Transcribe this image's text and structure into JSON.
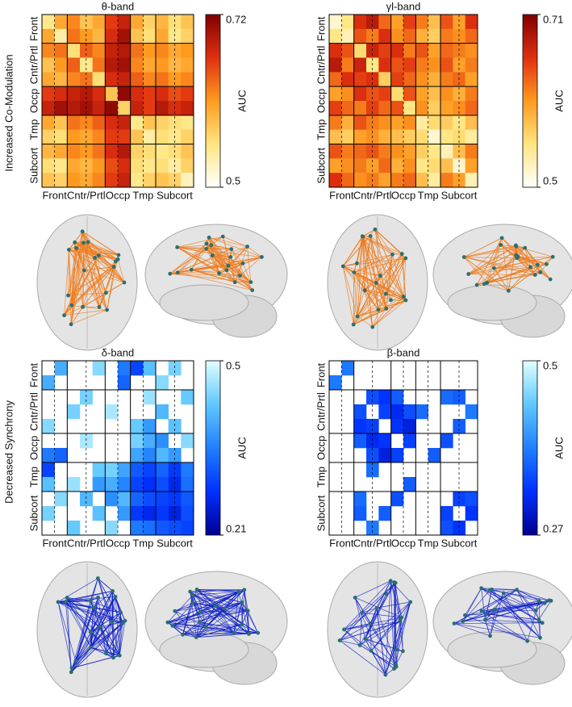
{
  "panel_rows": [
    "Increased Co-Modulation",
    "Decreased Synchrony"
  ],
  "chart_data": [
    {
      "type": "heatmap",
      "title": "θ-band",
      "colorbar_label": "AUC",
      "clim": [
        0.5,
        0.72
      ],
      "cticks": [
        0.5,
        0.72
      ],
      "colors": [
        "#ffffff",
        "#ffe680",
        "#ff9a20",
        "#e03010",
        "#800000"
      ],
      "groups": [
        {
          "name": "Front",
          "color": "#2b4a8c",
          "size": 2
        },
        {
          "name": "Cntr/Prtl",
          "color": "#d2691e",
          "size": 3
        },
        {
          "name": "Occp",
          "color": "#3a9a3a",
          "size": 2
        },
        {
          "name": "Tmp",
          "color": "#a040c0",
          "size": 2
        },
        {
          "name": "Subcort",
          "color": "#30b0b0",
          "size": 3
        }
      ],
      "matrix": [
        [
          0.55,
          0.6,
          0.62,
          0.58,
          0.6,
          0.66,
          0.68,
          0.6,
          0.57,
          0.59,
          0.56,
          0.58
        ],
        [
          0.6,
          0.54,
          0.63,
          0.61,
          0.59,
          0.67,
          0.7,
          0.58,
          0.56,
          0.6,
          0.55,
          0.57
        ],
        [
          0.62,
          0.63,
          0.56,
          0.64,
          0.62,
          0.68,
          0.69,
          0.63,
          0.61,
          0.62,
          0.6,
          0.61
        ],
        [
          0.58,
          0.61,
          0.64,
          0.55,
          0.63,
          0.69,
          0.7,
          0.62,
          0.6,
          0.61,
          0.59,
          0.6
        ],
        [
          0.6,
          0.59,
          0.62,
          0.63,
          0.56,
          0.67,
          0.68,
          0.64,
          0.62,
          0.63,
          0.61,
          0.62
        ],
        [
          0.66,
          0.67,
          0.68,
          0.69,
          0.67,
          0.58,
          0.71,
          0.67,
          0.66,
          0.67,
          0.65,
          0.66
        ],
        [
          0.68,
          0.7,
          0.69,
          0.7,
          0.68,
          0.71,
          0.57,
          0.68,
          0.66,
          0.69,
          0.67,
          0.68
        ],
        [
          0.6,
          0.58,
          0.63,
          0.62,
          0.64,
          0.67,
          0.68,
          0.55,
          0.58,
          0.57,
          0.56,
          0.55
        ],
        [
          0.57,
          0.56,
          0.61,
          0.6,
          0.62,
          0.66,
          0.66,
          0.58,
          0.54,
          0.56,
          0.55,
          0.57
        ],
        [
          0.59,
          0.6,
          0.62,
          0.61,
          0.63,
          0.67,
          0.69,
          0.57,
          0.56,
          0.55,
          0.56,
          0.58
        ],
        [
          0.56,
          0.55,
          0.6,
          0.59,
          0.61,
          0.65,
          0.67,
          0.56,
          0.55,
          0.56,
          0.54,
          0.57
        ],
        [
          0.58,
          0.57,
          0.61,
          0.6,
          0.62,
          0.66,
          0.68,
          0.55,
          0.57,
          0.58,
          0.57,
          0.53
        ]
      ]
    },
    {
      "type": "heatmap",
      "title": "γl-band",
      "colorbar_label": "AUC",
      "clim": [
        0.5,
        0.71
      ],
      "cticks": [
        0.5,
        0.71
      ],
      "colors": [
        "#ffffff",
        "#ffe680",
        "#ff9a20",
        "#e03010",
        "#800000"
      ],
      "groups": [
        {
          "name": "Front",
          "color": "#2b4a8c",
          "size": 2
        },
        {
          "name": "Cntr/Prtl",
          "color": "#d2691e",
          "size": 3
        },
        {
          "name": "Occp",
          "color": "#3a9a3a",
          "size": 2
        },
        {
          "name": "Tmp",
          "color": "#a040c0",
          "size": 2
        },
        {
          "name": "Subcort",
          "color": "#30b0b0",
          "size": 3
        }
      ],
      "matrix": [
        [
          0.52,
          0.55,
          0.66,
          0.68,
          0.63,
          0.6,
          0.65,
          0.62,
          0.58,
          0.64,
          0.6,
          0.66
        ],
        [
          0.55,
          0.53,
          0.64,
          0.62,
          0.66,
          0.61,
          0.63,
          0.59,
          0.57,
          0.62,
          0.61,
          0.63
        ],
        [
          0.66,
          0.64,
          0.56,
          0.67,
          0.65,
          0.66,
          0.62,
          0.64,
          0.6,
          0.63,
          0.62,
          0.61
        ],
        [
          0.68,
          0.62,
          0.67,
          0.55,
          0.66,
          0.64,
          0.65,
          0.62,
          0.61,
          0.64,
          0.6,
          0.62
        ],
        [
          0.63,
          0.66,
          0.65,
          0.66,
          0.57,
          0.65,
          0.63,
          0.61,
          0.59,
          0.62,
          0.63,
          0.6
        ],
        [
          0.6,
          0.61,
          0.66,
          0.64,
          0.65,
          0.56,
          0.64,
          0.6,
          0.58,
          0.61,
          0.59,
          0.62
        ],
        [
          0.65,
          0.63,
          0.62,
          0.65,
          0.63,
          0.64,
          0.55,
          0.61,
          0.57,
          0.6,
          0.61,
          0.63
        ],
        [
          0.62,
          0.59,
          0.64,
          0.62,
          0.61,
          0.6,
          0.61,
          0.54,
          0.56,
          0.57,
          0.55,
          0.58
        ],
        [
          0.58,
          0.57,
          0.6,
          0.61,
          0.59,
          0.58,
          0.57,
          0.56,
          0.52,
          0.55,
          0.56,
          0.54
        ],
        [
          0.64,
          0.62,
          0.63,
          0.64,
          0.62,
          0.61,
          0.6,
          0.57,
          0.55,
          0.53,
          0.58,
          0.62
        ],
        [
          0.6,
          0.61,
          0.62,
          0.6,
          0.63,
          0.59,
          0.61,
          0.55,
          0.56,
          0.58,
          0.52,
          0.6
        ],
        [
          0.66,
          0.63,
          0.61,
          0.62,
          0.6,
          0.62,
          0.63,
          0.58,
          0.54,
          0.62,
          0.6,
          0.53
        ]
      ]
    },
    {
      "type": "heatmap",
      "title": "δ-band",
      "colorbar_label": "AUC",
      "clim": [
        0.21,
        0.5
      ],
      "cticks": [
        0.21,
        0.5
      ],
      "colors": [
        "#000090",
        "#0030ff",
        "#2080ff",
        "#60c8ff",
        "#e0ffff"
      ],
      "groups": [
        {
          "name": "Front",
          "color": "#2b4a8c",
          "size": 2
        },
        {
          "name": "Cntr/Prtl",
          "color": "#d2691e",
          "size": 3
        },
        {
          "name": "Occp",
          "color": "#3a9a3a",
          "size": 2
        },
        {
          "name": "Tmp",
          "color": "#a040c0",
          "size": 2
        },
        {
          "name": "Subcort",
          "color": "#30b0b0",
          "size": 3
        }
      ],
      "matrix": [
        [
          null,
          0.4,
          null,
          null,
          0.45,
          null,
          0.35,
          0.3,
          0.42,
          null,
          0.44,
          null
        ],
        [
          0.4,
          null,
          null,
          null,
          null,
          null,
          0.33,
          null,
          null,
          0.45,
          null,
          null
        ],
        [
          null,
          null,
          null,
          0.44,
          null,
          null,
          null,
          null,
          0.46,
          null,
          null,
          0.43
        ],
        [
          null,
          null,
          0.44,
          null,
          null,
          0.47,
          null,
          null,
          null,
          0.41,
          null,
          null
        ],
        [
          0.45,
          null,
          null,
          null,
          null,
          null,
          null,
          0.43,
          0.38,
          null,
          0.42,
          null
        ],
        [
          null,
          null,
          null,
          0.47,
          null,
          null,
          null,
          0.44,
          0.4,
          0.37,
          null,
          0.45
        ],
        [
          0.35,
          0.33,
          null,
          null,
          null,
          null,
          null,
          0.39,
          0.36,
          0.41,
          0.38,
          null
        ],
        [
          0.3,
          null,
          null,
          null,
          0.43,
          0.44,
          0.39,
          0.32,
          0.3,
          0.33,
          0.29,
          0.35
        ],
        [
          0.42,
          null,
          0.46,
          null,
          0.38,
          0.4,
          0.36,
          0.3,
          0.28,
          0.31,
          0.27,
          0.34
        ],
        [
          null,
          0.45,
          null,
          0.41,
          null,
          0.37,
          0.41,
          0.33,
          0.31,
          0.3,
          0.29,
          0.32
        ],
        [
          0.44,
          null,
          null,
          null,
          0.42,
          null,
          0.38,
          0.29,
          0.27,
          0.29,
          0.26,
          0.31
        ],
        [
          null,
          null,
          0.43,
          null,
          null,
          0.45,
          null,
          0.35,
          0.34,
          0.32,
          0.31,
          0.3
        ]
      ]
    },
    {
      "type": "heatmap",
      "title": "β-band",
      "colorbar_label": "AUC",
      "clim": [
        0.27,
        0.5
      ],
      "cticks": [
        0.27,
        0.5
      ],
      "colors": [
        "#000090",
        "#0030ff",
        "#2080ff",
        "#60c8ff",
        "#e0ffff"
      ],
      "groups": [
        {
          "name": "Front",
          "color": "#2b4a8c",
          "size": 2
        },
        {
          "name": "Cntr/Prtl",
          "color": "#d2691e",
          "size": 3
        },
        {
          "name": "Occp",
          "color": "#3a9a3a",
          "size": 2
        },
        {
          "name": "Tmp",
          "color": "#a040c0",
          "size": 2
        },
        {
          "name": "Subcort",
          "color": "#30b0b0",
          "size": 3
        }
      ],
      "matrix": [
        [
          null,
          0.38,
          null,
          null,
          null,
          null,
          null,
          null,
          null,
          null,
          null,
          null
        ],
        [
          0.38,
          null,
          null,
          null,
          null,
          null,
          null,
          null,
          null,
          null,
          null,
          null
        ],
        [
          null,
          null,
          null,
          0.35,
          0.33,
          0.36,
          null,
          null,
          null,
          0.37,
          0.36,
          null
        ],
        [
          null,
          null,
          0.35,
          null,
          0.34,
          0.32,
          0.35,
          0.37,
          null,
          null,
          null,
          0.38
        ],
        [
          null,
          null,
          0.33,
          0.34,
          null,
          0.33,
          0.31,
          null,
          null,
          null,
          0.36,
          null
        ],
        [
          null,
          null,
          0.36,
          0.32,
          0.33,
          null,
          0.34,
          null,
          null,
          0.35,
          null,
          null
        ],
        [
          null,
          null,
          null,
          0.35,
          0.31,
          0.34,
          null,
          null,
          0.36,
          null,
          null,
          null
        ],
        [
          null,
          null,
          null,
          0.37,
          null,
          null,
          null,
          null,
          null,
          null,
          null,
          null
        ],
        [
          null,
          null,
          null,
          null,
          null,
          null,
          0.36,
          null,
          null,
          null,
          null,
          null
        ],
        [
          null,
          null,
          0.37,
          null,
          null,
          0.35,
          null,
          null,
          null,
          null,
          0.34,
          0.35
        ],
        [
          null,
          null,
          0.36,
          null,
          0.36,
          null,
          null,
          null,
          null,
          0.34,
          null,
          0.33
        ],
        [
          null,
          null,
          null,
          0.38,
          null,
          null,
          null,
          null,
          null,
          0.35,
          0.33,
          null
        ]
      ]
    }
  ]
}
